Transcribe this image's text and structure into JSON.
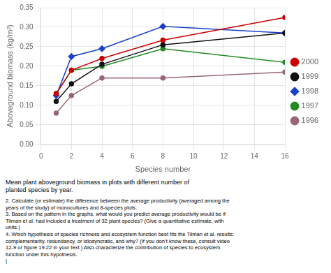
{
  "chart_data": {
    "type": "line",
    "x": [
      1,
      2,
      4,
      8,
      16
    ],
    "series": [
      {
        "name": "2000",
        "color": "#cc0000",
        "marker": "circle",
        "values": [
          0.13,
          0.19,
          0.22,
          0.267,
          0.325
        ]
      },
      {
        "name": "1999",
        "color": "#111111",
        "marker": "circle",
        "values": [
          0.11,
          0.155,
          0.205,
          0.255,
          0.285
        ]
      },
      {
        "name": "1998",
        "color": "#1a3fcc",
        "marker": "diamond",
        "values": [
          0.125,
          0.225,
          0.245,
          0.302,
          0.285
        ]
      },
      {
        "name": "1997",
        "color": "#228B22",
        "marker": "circle",
        "values": [
          0.13,
          0.19,
          0.2,
          0.245,
          0.21
        ]
      },
      {
        "name": "1996",
        "color": "#996677",
        "marker": "circle",
        "values": [
          0.08,
          0.125,
          0.17,
          0.17,
          0.185
        ]
      }
    ],
    "xlabel": "Species number",
    "ylabel": "Aboveground biomass (kg/m²)",
    "xlim": [
      0,
      16
    ],
    "ylim": [
      0,
      0.35
    ],
    "xticks": [
      0,
      2,
      4,
      6,
      8,
      10,
      12,
      14,
      16
    ],
    "yticks": [
      {
        "value": 0,
        "label": "0.00"
      },
      {
        "value": 0.05,
        "label": "0.05"
      },
      {
        "value": 0.1,
        "label": "0.10"
      },
      {
        "value": 0.15,
        "label": "0.15"
      },
      {
        "value": 0.2,
        "label": "0.20"
      },
      {
        "value": 0.25,
        "label": "0.25"
      },
      {
        "value": 0.3,
        "label": "0.30"
      },
      {
        "value": 0.35,
        "label": "0.35"
      }
    ],
    "grid": true,
    "legend": "right",
    "annotations": [
      "Mean plant aboveground biomass in plots with different number of\nplanted species by year.",
      "2. Calculate (or estimate) the difference between the average productivity (averaged among the",
      "years of the study) of monocultures and 8-species plots.",
      "3. Based on the pattern in the graphs, what would you predict average productivity would be if",
      "Tilman et al. had included a treatment of 32 plant species? (Give a quantitative estimate, with",
      "units.)",
      "4. Which hypothesis of species richness and ecosystem function best fits the Tilman et al. results:",
      "complementarity, redundancy, or idiosyncratic, and why? (If you don’t know these, consult video",
      "12-9 or figure 19.22 in your text.) Also characterize the contribution of species to ecosystem",
      "function under this hypothesis.",
      "|"
    ]
  }
}
